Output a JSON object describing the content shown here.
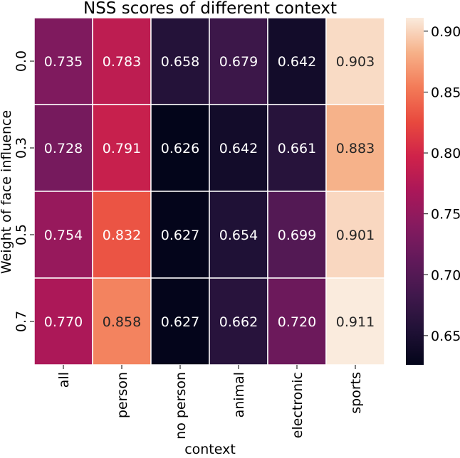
{
  "chart_data": {
    "type": "heatmap",
    "title": "NSS scores of different context",
    "xlabel": "context",
    "ylabel": "Weight of face influence",
    "x_categories": [
      "all",
      "person",
      "no person",
      "animal",
      "electronic",
      "sports"
    ],
    "y_categories": [
      "0.0",
      "0.3",
      "0.5",
      "0.7"
    ],
    "values": [
      [
        0.735,
        0.783,
        0.658,
        0.679,
        0.642,
        0.903
      ],
      [
        0.728,
        0.791,
        0.626,
        0.642,
        0.661,
        0.883
      ],
      [
        0.754,
        0.832,
        0.627,
        0.654,
        0.699,
        0.901
      ],
      [
        0.77,
        0.858,
        0.627,
        0.662,
        0.72,
        0.911
      ]
    ],
    "value_labels": [
      [
        "0.735",
        "0.783",
        "0.658",
        "0.679",
        "0.642",
        "0.903"
      ],
      [
        "0.728",
        "0.791",
        "0.626",
        "0.642",
        "0.661",
        "0.883"
      ],
      [
        "0.754",
        "0.832",
        "0.627",
        "0.654",
        "0.699",
        "0.901"
      ],
      [
        "0.770",
        "0.858",
        "0.627",
        "0.662",
        "0.720",
        "0.911"
      ]
    ],
    "colormap": "rocket",
    "vmin": 0.626,
    "vmax": 0.911,
    "colorbar_ticks": [
      0.65,
      0.7,
      0.75,
      0.8,
      0.85,
      0.9
    ],
    "colorbar_tick_labels": [
      "0.65",
      "0.70",
      "0.75",
      "0.80",
      "0.85",
      "0.90"
    ],
    "colorbar_position": "right",
    "grid": false
  }
}
